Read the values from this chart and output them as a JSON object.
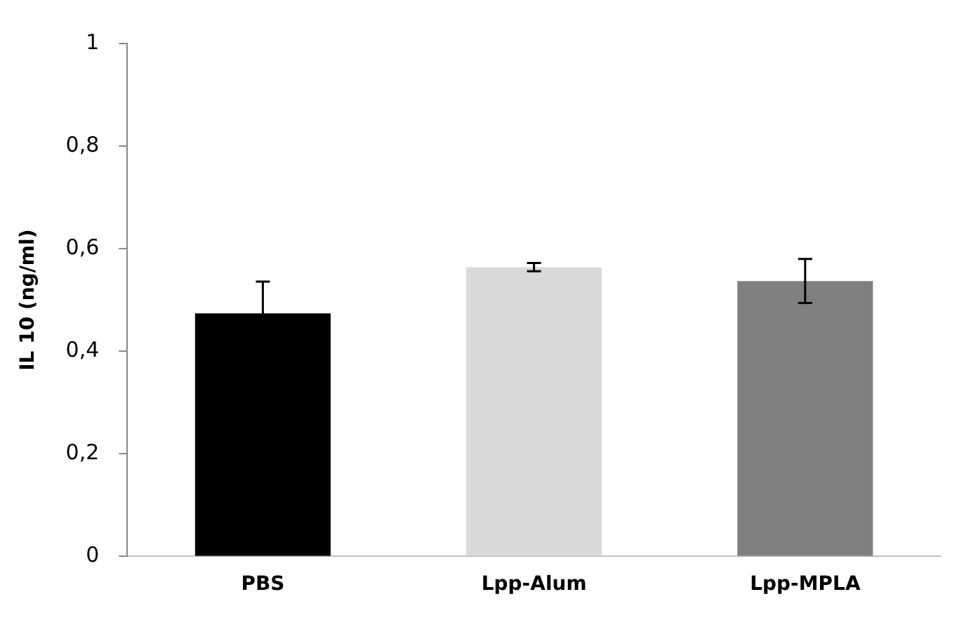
{
  "chart_data": {
    "type": "bar",
    "ylabel": "IL 10 (ng/ml)",
    "categories": [
      "PBS",
      "Lpp-Alum",
      "Lpp-MPLA"
    ],
    "values": [
      0.474,
      0.564,
      0.537
    ],
    "colors": [
      "#000000",
      "#d9d9d9",
      "#808080"
    ],
    "errors": [
      0.062,
      0.008,
      0.043
    ],
    "ylim": [
      0,
      1
    ],
    "yticks": [
      {
        "value": 0,
        "label": "0"
      },
      {
        "value": 0.2,
        "label": "0,2"
      },
      {
        "value": 0.4,
        "label": "0,4"
      },
      {
        "value": 0.6,
        "label": "0,6"
      },
      {
        "value": 0.8,
        "label": "0,8"
      },
      {
        "value": 1,
        "label": "1"
      }
    ],
    "grid": false,
    "legend": false
  }
}
